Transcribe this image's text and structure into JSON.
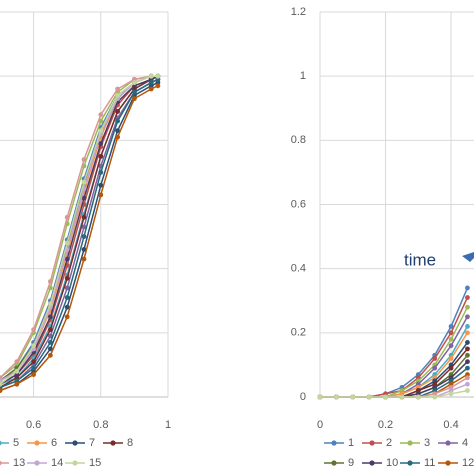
{
  "chart_data": [
    {
      "type": "line",
      "x": [
        0.5,
        0.55,
        0.6,
        0.65,
        0.7,
        0.75,
        0.8,
        0.85,
        0.9,
        0.95,
        0.97
      ],
      "xlim": [
        0.5,
        1
      ],
      "xticks": [
        0.6,
        0.8,
        1
      ],
      "ylim": [
        0,
        1.2
      ],
      "ygrid": [
        0.2,
        0.4,
        0.6,
        0.8,
        1,
        1.2
      ],
      "grid": true,
      "legend": "bottom",
      "series": [
        {
          "name": null,
          "color": "#4f81bd",
          "values": [
            0.05,
            0.09,
            0.17,
            0.3,
            0.49,
            0.68,
            0.84,
            0.94,
            0.98,
            1.0,
            1.0
          ]
        },
        {
          "name": null,
          "color": "#c0504d",
          "values": [
            0.04,
            0.07,
            0.13,
            0.24,
            0.41,
            0.6,
            0.78,
            0.91,
            0.97,
            0.99,
            1.0
          ]
        },
        {
          "name": null,
          "color": "#9bbb59",
          "values": [
            0.06,
            0.1,
            0.2,
            0.34,
            0.54,
            0.72,
            0.86,
            0.95,
            0.99,
            1.0,
            1.0
          ]
        },
        {
          "name": null,
          "color": "#8064a2",
          "values": [
            0.03,
            0.05,
            0.1,
            0.19,
            0.34,
            0.53,
            0.72,
            0.87,
            0.95,
            0.98,
            0.99
          ]
        },
        {
          "name": "5",
          "color": "#4bacc6",
          "values": [
            0.04,
            0.06,
            0.12,
            0.22,
            0.38,
            0.57,
            0.75,
            0.89,
            0.96,
            0.99,
            1.0
          ]
        },
        {
          "name": "6",
          "color": "#f79646",
          "values": [
            0.05,
            0.08,
            0.15,
            0.27,
            0.45,
            0.64,
            0.81,
            0.93,
            0.98,
            1.0,
            1.0
          ]
        },
        {
          "name": "7",
          "color": "#2c4d75",
          "values": [
            0.02,
            0.04,
            0.08,
            0.15,
            0.28,
            0.46,
            0.66,
            0.83,
            0.94,
            0.97,
            0.98
          ]
        },
        {
          "name": "8",
          "color": "#772c2a",
          "values": [
            0.03,
            0.06,
            0.11,
            0.21,
            0.37,
            0.56,
            0.75,
            0.89,
            0.96,
            0.99,
            1.0
          ]
        },
        {
          "name": null,
          "color": "#5f7530",
          "values": [
            0.05,
            0.09,
            0.16,
            0.29,
            0.47,
            0.66,
            0.82,
            0.93,
            0.98,
            1.0,
            1.0
          ]
        },
        {
          "name": null,
          "color": "#4d3b62",
          "values": [
            0.04,
            0.07,
            0.14,
            0.25,
            0.43,
            0.62,
            0.79,
            0.92,
            0.97,
            0.99,
            1.0
          ]
        },
        {
          "name": null,
          "color": "#276a7c",
          "values": [
            0.03,
            0.05,
            0.09,
            0.17,
            0.31,
            0.5,
            0.7,
            0.86,
            0.95,
            0.98,
            0.99
          ]
        },
        {
          "name": null,
          "color": "#b65708",
          "values": [
            0.02,
            0.04,
            0.07,
            0.13,
            0.25,
            0.43,
            0.63,
            0.81,
            0.93,
            0.96,
            0.97
          ]
        },
        {
          "name": "13",
          "color": "#d99694",
          "values": [
            0.06,
            0.11,
            0.21,
            0.36,
            0.56,
            0.74,
            0.88,
            0.96,
            0.99,
            1.0,
            1.0
          ]
        },
        {
          "name": "14",
          "color": "#c3a6d6",
          "values": [
            0.05,
            0.08,
            0.15,
            0.28,
            0.46,
            0.65,
            0.82,
            0.93,
            0.98,
            1.0,
            1.0
          ]
        },
        {
          "name": "15",
          "color": "#c3d69b",
          "values": [
            0.04,
            0.08,
            0.16,
            0.29,
            0.48,
            0.67,
            0.83,
            0.94,
            0.98,
            1.0,
            1.0
          ]
        }
      ]
    },
    {
      "type": "line",
      "annotation": "time",
      "x": [
        0,
        0.05,
        0.1,
        0.15,
        0.2,
        0.25,
        0.3,
        0.35,
        0.4,
        0.45
      ],
      "xlim": [
        0,
        0.47
      ],
      "xticks": [
        0,
        0.2,
        0.4
      ],
      "ylim": [
        0,
        1.2
      ],
      "yticks": [
        0,
        0.2,
        0.4,
        0.6,
        0.8,
        1,
        1.2
      ],
      "grid": true,
      "legend": "bottom",
      "series": [
        {
          "name": "1",
          "color": "#4f81bd",
          "values": [
            0,
            0,
            0,
            0,
            0.01,
            0.03,
            0.07,
            0.13,
            0.22,
            0.34
          ]
        },
        {
          "name": "2",
          "color": "#c0504d",
          "values": [
            0,
            0,
            0,
            0,
            0.01,
            0.02,
            0.06,
            0.12,
            0.2,
            0.31
          ]
        },
        {
          "name": "3",
          "color": "#9bbb59",
          "values": [
            0,
            0,
            0,
            0,
            0,
            0.02,
            0.05,
            0.1,
            0.18,
            0.28
          ]
        },
        {
          "name": "4",
          "color": "#8064a2",
          "values": [
            0,
            0,
            0,
            0,
            0,
            0.01,
            0.04,
            0.09,
            0.16,
            0.25
          ]
        },
        {
          "name": null,
          "color": "#4bacc6",
          "values": [
            0,
            0,
            0,
            0,
            0,
            0.01,
            0.03,
            0.07,
            0.13,
            0.22
          ]
        },
        {
          "name": null,
          "color": "#f79646",
          "values": [
            0,
            0,
            0,
            0,
            0,
            0.01,
            0.03,
            0.06,
            0.12,
            0.2
          ]
        },
        {
          "name": null,
          "color": "#2c4d75",
          "values": [
            0,
            0,
            0,
            0,
            0,
            0,
            0.02,
            0.05,
            0.1,
            0.17
          ]
        },
        {
          "name": null,
          "color": "#772c2a",
          "values": [
            0,
            0,
            0,
            0,
            0,
            0,
            0.02,
            0.04,
            0.09,
            0.15
          ]
        },
        {
          "name": "9",
          "color": "#5f7530",
          "values": [
            0,
            0,
            0,
            0,
            0,
            0,
            0.01,
            0.03,
            0.07,
            0.13
          ]
        },
        {
          "name": "10",
          "color": "#4d3b62",
          "values": [
            0,
            0,
            0,
            0,
            0,
            0,
            0.01,
            0.03,
            0.06,
            0.11
          ]
        },
        {
          "name": "11",
          "color": "#276a7c",
          "values": [
            0,
            0,
            0,
            0,
            0,
            0,
            0,
            0.02,
            0.05,
            0.09
          ]
        },
        {
          "name": "12",
          "color": "#b65708",
          "values": [
            0,
            0,
            0,
            0,
            0,
            0,
            0,
            0.01,
            0.04,
            0.07
          ]
        },
        {
          "name": null,
          "color": "#d99694",
          "values": [
            0,
            0,
            0,
            0,
            0,
            0,
            0,
            0.01,
            0.03,
            0.06
          ]
        },
        {
          "name": null,
          "color": "#c3a6d6",
          "values": [
            0,
            0,
            0,
            0,
            0,
            0,
            0,
            0,
            0.02,
            0.04
          ]
        },
        {
          "name": null,
          "color": "#c3d69b",
          "values": [
            0,
            0,
            0,
            0,
            0,
            0,
            0,
            0,
            0.01,
            0.02
          ]
        }
      ]
    }
  ]
}
